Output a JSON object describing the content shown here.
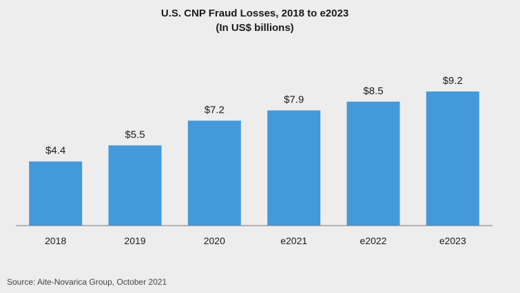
{
  "chart_data": {
    "type": "bar",
    "title": "U.S. CNP Fraud Losses, 2018 to e2023",
    "subtitle": "(In US$ billions)",
    "categories": [
      "2018",
      "2019",
      "2020",
      "e2021",
      "e2022",
      "e2023"
    ],
    "values": [
      4.4,
      5.5,
      7.2,
      7.9,
      8.5,
      9.2
    ],
    "data_labels": [
      "$4.4",
      "$5.5",
      "$7.2",
      "$7.9",
      "$8.5",
      "$9.2"
    ],
    "ylim": [
      0,
      10
    ],
    "grid": false,
    "bar_color": "#4499db",
    "axis_color": "#777777"
  },
  "source": "Source: Aite-Novarica Group, October 2021"
}
